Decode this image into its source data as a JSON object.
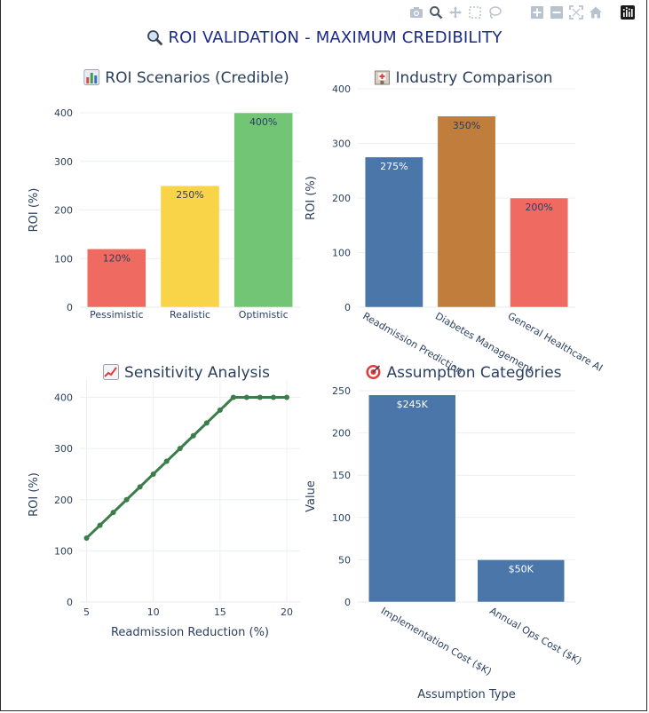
{
  "main_title": "ROI VALIDATION - MAXIMUM CREDIBILITY",
  "main_title_icon": "magnifier-icon",
  "modebar": {
    "icons": [
      "camera-icon",
      "zoom-icon",
      "pan-icon",
      "box-select-icon",
      "lasso-icon",
      "zoom-in-icon",
      "zoom-out-icon",
      "autoscale-icon",
      "home-icon",
      "plotly-logo-icon"
    ]
  },
  "chart_data": [
    {
      "id": "scenarios",
      "type": "bar",
      "title": "ROI Scenarios (Credible)",
      "title_icon": "bar-chart-emoji-icon",
      "ylabel": "ROI (%)",
      "xlabel": "",
      "ylim": [
        0,
        400
      ],
      "yticks": [
        "0",
        "100",
        "200",
        "300",
        "400"
      ],
      "categories": [
        "Pessimistic",
        "Realistic",
        "Optimistic"
      ],
      "values": [
        120,
        250,
        400
      ],
      "labels": [
        "120%",
        "250%",
        "400%"
      ],
      "colors": [
        "#ef6b61",
        "#f9d449",
        "#73c576"
      ],
      "label_colors": [
        "#2a3f5f",
        "#2a3f5f",
        "#2a3f5f"
      ],
      "grid": true
    },
    {
      "id": "industry",
      "type": "bar",
      "title": "Industry Comparison",
      "title_icon": "hospital-emoji-icon",
      "ylabel": "ROI (%)",
      "xlabel": "",
      "ylim": [
        0,
        400
      ],
      "yticks": [
        "0",
        "100",
        "200",
        "300",
        "400"
      ],
      "categories": [
        "Readmission Prediction",
        "Diabetes Management",
        "General Healthcare AI"
      ],
      "values": [
        275,
        350,
        200
      ],
      "labels": [
        "275%",
        "350%",
        "200%"
      ],
      "colors": [
        "#4a76aa",
        "#c07d3b",
        "#ef6b61"
      ],
      "label_colors": [
        "#ffffff",
        "#2a3f5f",
        "#2a3f5f"
      ],
      "grid": true
    },
    {
      "id": "sensitivity",
      "type": "line",
      "title": "Sensitivity Analysis",
      "title_icon": "trend-chart-emoji-icon",
      "xlabel": "Readmission Reduction (%)",
      "ylabel": "ROI (%)",
      "xlim": [
        4.5,
        21
      ],
      "ylim": [
        0,
        420
      ],
      "xticks": [
        "5",
        "10",
        "15",
        "20"
      ],
      "yticks": [
        "0",
        "100",
        "200",
        "300",
        "400"
      ],
      "series": [
        {
          "x": [
            5,
            6,
            7,
            8,
            9,
            10,
            11,
            12,
            13,
            14,
            15,
            16,
            17,
            18,
            19,
            20
          ],
          "y": [
            125,
            150,
            175,
            200,
            225,
            250,
            275,
            300,
            325,
            350,
            375,
            400,
            400,
            400,
            400,
            400
          ],
          "color": "#3a7d4a"
        }
      ],
      "grid": true
    },
    {
      "id": "assumptions",
      "type": "bar",
      "title": "Assumption Categories",
      "title_icon": "target-emoji-icon",
      "xlabel": "Assumption Type",
      "ylabel": "Value",
      "ylim": [
        0,
        250
      ],
      "yticks": [
        "0",
        "50",
        "100",
        "150",
        "200",
        "250"
      ],
      "categories": [
        "Implementation Cost ($K)",
        "Annual Ops Cost ($K)"
      ],
      "values": [
        245,
        50
      ],
      "labels": [
        "$245K",
        "$50K"
      ],
      "colors": [
        "#4a76aa",
        "#4a76aa"
      ],
      "label_colors": [
        "#ffffff",
        "#ffffff"
      ],
      "grid": true
    }
  ]
}
